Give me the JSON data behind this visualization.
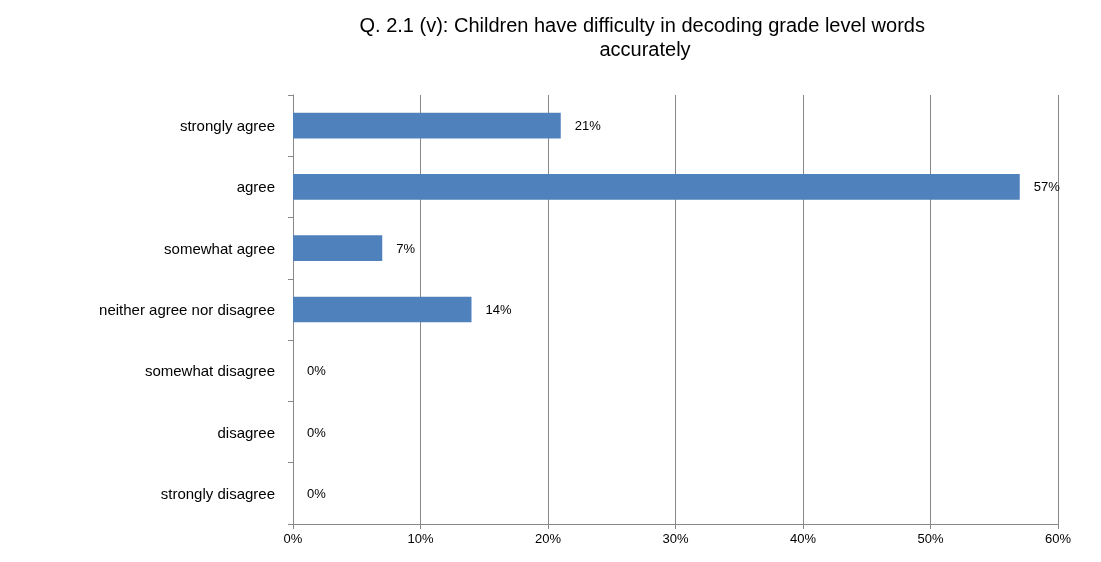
{
  "chart_data": {
    "type": "bar",
    "orientation": "horizontal",
    "title": "Q. 2.1 (v): Children have difficulty in decoding grade level words accurately",
    "categories": [
      "strongly agree",
      "agree",
      "somewhat agree",
      "neither agree nor disagree",
      "somewhat disagree",
      "disagree",
      "strongly disagree"
    ],
    "values": [
      21,
      57,
      7,
      14,
      0,
      0,
      0
    ],
    "value_labels": [
      "21%",
      "57%",
      "7%",
      "14%",
      "0%",
      "0%",
      "0%"
    ],
    "color": "#4f81bd",
    "xlim": [
      0,
      60
    ],
    "xticks": [
      {
        "value": 0,
        "label": "0%"
      },
      {
        "value": 10,
        "label": "10%"
      },
      {
        "value": 20,
        "label": "20%"
      },
      {
        "value": 30,
        "label": "30%"
      },
      {
        "value": 40,
        "label": "40%"
      },
      {
        "value": 50,
        "label": "50%"
      },
      {
        "value": 60,
        "label": "60%"
      }
    ],
    "grid": "x"
  }
}
